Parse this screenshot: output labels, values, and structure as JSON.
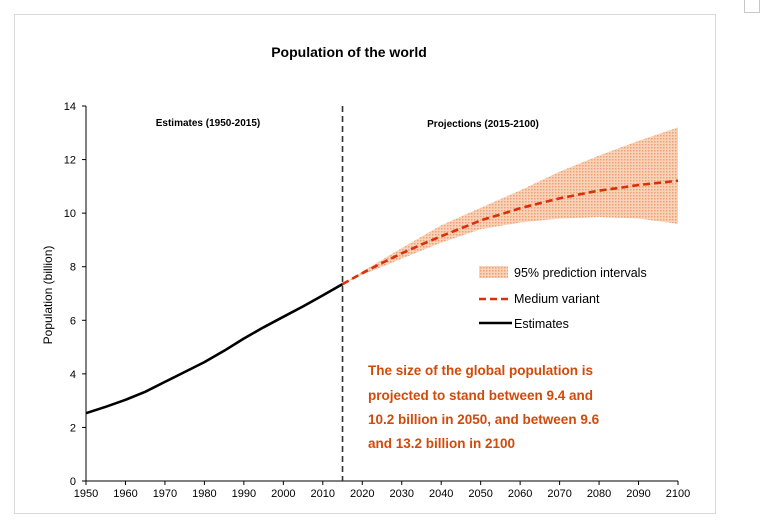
{
  "chart_data": {
    "type": "line",
    "title": "Population of the world",
    "ylabel": "Population (billion)",
    "xlabel": "",
    "xlim": [
      1950,
      2100
    ],
    "ylim": [
      0,
      14
    ],
    "x_ticks": [
      1950,
      1960,
      1970,
      1980,
      1990,
      2000,
      2010,
      2020,
      2030,
      2040,
      2050,
      2060,
      2070,
      2080,
      2090,
      2100
    ],
    "y_ticks": [
      0,
      2,
      4,
      6,
      8,
      10,
      12,
      14
    ],
    "divider_year": 2015,
    "regions": {
      "estimates_label": "Estimates (1950-2015)",
      "projections_label": "Projections (2015-2100)"
    },
    "series": [
      {
        "name": "Estimates",
        "style": "solid",
        "color": "#000000",
        "x": [
          1950,
          1955,
          1960,
          1965,
          1970,
          1975,
          1980,
          1985,
          1990,
          1995,
          2000,
          2005,
          2010,
          2015
        ],
        "values": [
          2.53,
          2.77,
          3.03,
          3.33,
          3.7,
          4.07,
          4.44,
          4.86,
          5.32,
          5.74,
          6.13,
          6.52,
          6.93,
          7.35
        ]
      },
      {
        "name": "Medium variant",
        "style": "dashed",
        "color": "#d9300c",
        "x": [
          2015,
          2020,
          2025,
          2030,
          2035,
          2040,
          2045,
          2050,
          2055,
          2060,
          2065,
          2070,
          2075,
          2080,
          2085,
          2090,
          2095,
          2100
        ],
        "values": [
          7.35,
          7.76,
          8.14,
          8.5,
          8.83,
          9.14,
          9.43,
          9.73,
          9.95,
          10.18,
          10.37,
          10.55,
          10.7,
          10.84,
          10.94,
          11.05,
          11.13,
          11.21
        ]
      },
      {
        "name": "95% prediction intervals",
        "style": "band",
        "color": "#f4b894",
        "x": [
          2015,
          2020,
          2030,
          2040,
          2050,
          2060,
          2070,
          2080,
          2090,
          2100
        ],
        "lower": [
          7.35,
          7.7,
          8.3,
          8.9,
          9.4,
          9.65,
          9.8,
          9.85,
          9.8,
          9.6
        ],
        "upper": [
          7.35,
          7.82,
          8.7,
          9.55,
          10.2,
          10.85,
          11.55,
          12.15,
          12.7,
          13.2
        ]
      }
    ],
    "legend": [
      "95% prediction intervals",
      "Medium variant",
      "Estimates"
    ],
    "annotation_lines": [
      "The size of the global population is",
      "projected to stand between 9.4 and",
      "10.2 billion in 2050, and between 9.6",
      "and 13.2 billion in 2100"
    ],
    "annotation_color": "#d24a0a",
    "band_color": "#f7c7a6",
    "medium_color": "#d9300c",
    "estimate_color": "#000000"
  }
}
